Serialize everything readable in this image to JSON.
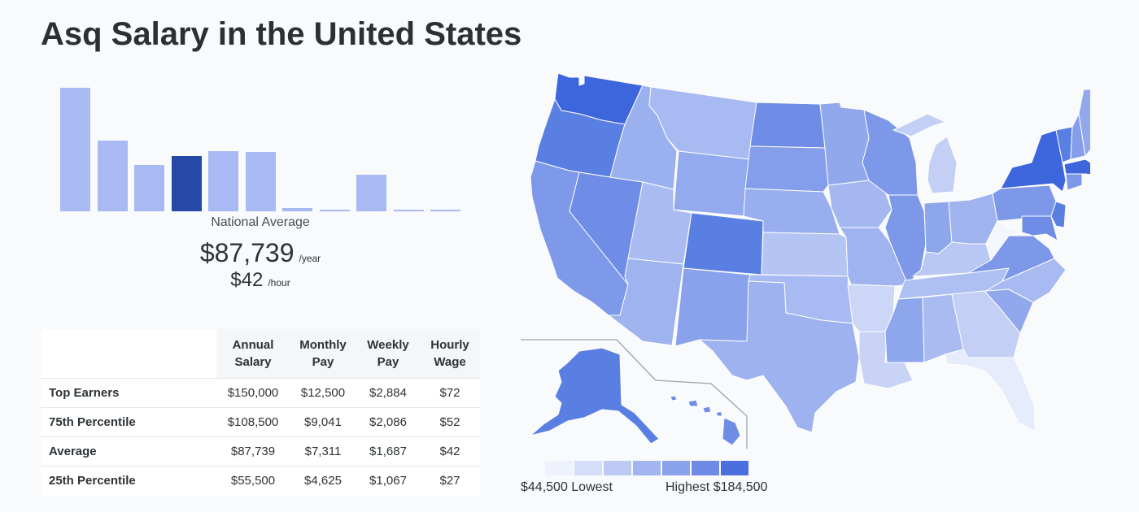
{
  "page": {
    "title": "Asq Salary in the United States"
  },
  "histogram": {
    "bars": [
      0.98,
      0.56,
      0.37,
      0.44,
      0.48,
      0.47,
      0.025,
      0.01,
      0.29,
      0.01,
      0.01
    ],
    "active_index": 3,
    "bar_color": "#a9b9f3",
    "active_color": "#2649a8"
  },
  "national_average": {
    "label": "National Average",
    "annual": "$87,739",
    "annual_unit": "/year",
    "hourly": "$42",
    "hourly_unit": "/hour"
  },
  "table": {
    "columns": [
      "Annual Salary",
      "Monthly Pay",
      "Weekly Pay",
      "Hourly Wage"
    ],
    "rows": [
      {
        "label": "Top Earners",
        "values": [
          "$150,000",
          "$12,500",
          "$2,884",
          "$72"
        ]
      },
      {
        "label": "75th Percentile",
        "values": [
          "$108,500",
          "$9,041",
          "$2,086",
          "$52"
        ]
      },
      {
        "label": "Average",
        "values": [
          "$87,739",
          "$7,311",
          "$1,687",
          "$42"
        ]
      },
      {
        "label": "25th Percentile",
        "values": [
          "$55,500",
          "$4,625",
          "$1,067",
          "$27"
        ]
      }
    ]
  },
  "legend": {
    "low_label": "$44,500 Lowest",
    "high_label": "Highest $184,500",
    "colors": [
      "#eef2fc",
      "#d5def9",
      "#bccaf5",
      "#a3b5f1",
      "#8aa1ec",
      "#6f8be6",
      "#4c6fe0"
    ]
  },
  "map": {
    "states": [
      {
        "id": "washington",
        "color": "#3d66dd"
      },
      {
        "id": "oregon",
        "color": "#5a7fe2"
      },
      {
        "id": "california",
        "color": "#7e99e9"
      },
      {
        "id": "nevada",
        "color": "#6f8de6"
      },
      {
        "id": "idaho",
        "color": "#9bb0ee"
      },
      {
        "id": "montana",
        "color": "#a7baf1"
      },
      {
        "id": "wyoming",
        "color": "#94aaee"
      },
      {
        "id": "utah",
        "color": "#a9bbf1"
      },
      {
        "id": "arizona",
        "color": "#9fb3ef"
      },
      {
        "id": "colorado",
        "color": "#5a7fe2"
      },
      {
        "id": "new-mexico",
        "color": "#8aa2ec"
      },
      {
        "id": "north-dakota",
        "color": "#6f8de6"
      },
      {
        "id": "south-dakota",
        "color": "#849eeb"
      },
      {
        "id": "nebraska",
        "color": "#98aeee"
      },
      {
        "id": "kansas",
        "color": "#b5c5f3"
      },
      {
        "id": "oklahoma",
        "color": "#a7baf1"
      },
      {
        "id": "texas",
        "color": "#9eb2ef"
      },
      {
        "id": "minnesota",
        "color": "#91a8ed"
      },
      {
        "id": "iowa",
        "color": "#a4b7f0"
      },
      {
        "id": "missouri",
        "color": "#9fb3ef"
      },
      {
        "id": "arkansas",
        "color": "#ccd6f6"
      },
      {
        "id": "louisiana",
        "color": "#c8d3f6"
      },
      {
        "id": "wisconsin",
        "color": "#7d98e9"
      },
      {
        "id": "illinois",
        "color": "#7d98e9"
      },
      {
        "id": "michigan",
        "color": "#c3cff5"
      },
      {
        "id": "indiana",
        "color": "#8ea6ec"
      },
      {
        "id": "ohio",
        "color": "#9fb3ef"
      },
      {
        "id": "kentucky",
        "color": "#b8c7f3"
      },
      {
        "id": "tennessee",
        "color": "#aebff2"
      },
      {
        "id": "mississippi",
        "color": "#8ea6ec"
      },
      {
        "id": "alabama",
        "color": "#a9bbf1"
      },
      {
        "id": "georgia",
        "color": "#c3cff5"
      },
      {
        "id": "florida",
        "color": "#e6ecfb"
      },
      {
        "id": "south-carolina",
        "color": "#91a8ed"
      },
      {
        "id": "north-carolina",
        "color": "#a7baf1"
      },
      {
        "id": "virginia",
        "color": "#7d98e9"
      },
      {
        "id": "west-virginia",
        "color": "#f4f6fd"
      },
      {
        "id": "pennsylvania",
        "color": "#7d98e9"
      },
      {
        "id": "new-york",
        "color": "#3d66dd"
      },
      {
        "id": "maryland",
        "color": "#6f8de6"
      },
      {
        "id": "new-jersey",
        "color": "#5a7fe2"
      },
      {
        "id": "vermont",
        "color": "#5a7fe2"
      },
      {
        "id": "new-hampshire",
        "color": "#849eeb"
      },
      {
        "id": "maine",
        "color": "#91a8ed"
      },
      {
        "id": "massachusetts",
        "color": "#3d66dd"
      },
      {
        "id": "connecticut",
        "color": "#7d98e9"
      },
      {
        "id": "alaska",
        "color": "#5a7fe2"
      },
      {
        "id": "hawaii",
        "color": "#6f8de6"
      }
    ]
  }
}
